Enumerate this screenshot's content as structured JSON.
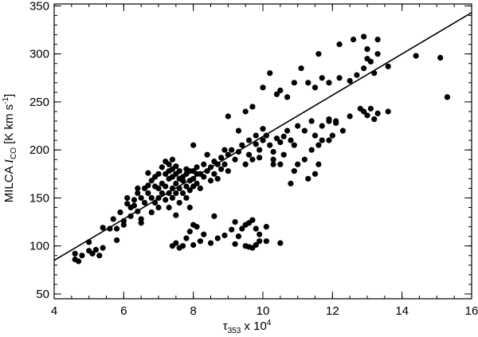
{
  "chart_data": {
    "type": "scatter",
    "xlabel": {
      "base": "τ",
      "sub": "353",
      "mid": " x 10",
      "sup": "4"
    },
    "ylabel": {
      "pre": "MILCA ",
      "italic": "I",
      "sub": "CO",
      "post": " [K km s",
      "sup": "-1",
      "end": "]"
    },
    "xlim": [
      4,
      16
    ],
    "ylim": [
      45,
      352
    ],
    "xticks": [
      4,
      6,
      8,
      10,
      12,
      14,
      16
    ],
    "yticks": [
      50,
      100,
      150,
      200,
      250,
      300,
      350
    ],
    "x_minor_step": 0.5,
    "y_minor_step": 10,
    "grid": false,
    "marker_color": "#000000",
    "fit_line": {
      "x": [
        4.0,
        16.0
      ],
      "y": [
        85,
        343
      ]
    },
    "points": [
      [
        4.6,
        92
      ],
      [
        4.6,
        86
      ],
      [
        4.7,
        84
      ],
      [
        4.8,
        90
      ],
      [
        5.0,
        104
      ],
      [
        5.0,
        95
      ],
      [
        5.1,
        92
      ],
      [
        5.2,
        96
      ],
      [
        5.3,
        90
      ],
      [
        5.4,
        98
      ],
      [
        5.4,
        119
      ],
      [
        5.6,
        118
      ],
      [
        5.7,
        128
      ],
      [
        5.8,
        106
      ],
      [
        5.8,
        118
      ],
      [
        5.9,
        135
      ],
      [
        6.0,
        126
      ],
      [
        6.0,
        122
      ],
      [
        6.1,
        144
      ],
      [
        6.1,
        150
      ],
      [
        6.2,
        131
      ],
      [
        6.2,
        140
      ],
      [
        6.3,
        148
      ],
      [
        6.3,
        142
      ],
      [
        6.4,
        155
      ],
      [
        6.4,
        136
      ],
      [
        6.4,
        160
      ],
      [
        6.5,
        150
      ],
      [
        6.5,
        128
      ],
      [
        6.5,
        124
      ],
      [
        6.6,
        160
      ],
      [
        6.6,
        145
      ],
      [
        6.7,
        176
      ],
      [
        6.7,
        163
      ],
      [
        6.7,
        155
      ],
      [
        6.8,
        168
      ],
      [
        6.8,
        150
      ],
      [
        6.8,
        135
      ],
      [
        6.9,
        172
      ],
      [
        6.9,
        162
      ],
      [
        6.9,
        145
      ],
      [
        7.0,
        160
      ],
      [
        7.0,
        175
      ],
      [
        7.0,
        150
      ],
      [
        7.0,
        140
      ],
      [
        7.1,
        182
      ],
      [
        7.1,
        165
      ],
      [
        7.1,
        155
      ],
      [
        7.2,
        188
      ],
      [
        7.2,
        175
      ],
      [
        7.2,
        162
      ],
      [
        7.2,
        148
      ],
      [
        7.3,
        185
      ],
      [
        7.3,
        178
      ],
      [
        7.3,
        170
      ],
      [
        7.3,
        155
      ],
      [
        7.3,
        140
      ],
      [
        7.4,
        190
      ],
      [
        7.4,
        180
      ],
      [
        7.4,
        172
      ],
      [
        7.4,
        160
      ],
      [
        7.4,
        150
      ],
      [
        7.5,
        183
      ],
      [
        7.5,
        175
      ],
      [
        7.5,
        165
      ],
      [
        7.5,
        155
      ],
      [
        7.5,
        132
      ],
      [
        7.6,
        178
      ],
      [
        7.6,
        170
      ],
      [
        7.6,
        160
      ],
      [
        7.6,
        145
      ],
      [
        7.7,
        172
      ],
      [
        7.7,
        168
      ],
      [
        7.7,
        155
      ],
      [
        7.8,
        180
      ],
      [
        7.8,
        175
      ],
      [
        7.8,
        162
      ],
      [
        7.8,
        150
      ],
      [
        7.9,
        178
      ],
      [
        7.9,
        168
      ],
      [
        7.9,
        158
      ],
      [
        7.9,
        140
      ],
      [
        8.0,
        205
      ],
      [
        8.0,
        178
      ],
      [
        8.0,
        170
      ],
      [
        8.0,
        162
      ],
      [
        8.1,
        182
      ],
      [
        8.1,
        175
      ],
      [
        8.1,
        165
      ],
      [
        8.2,
        175
      ],
      [
        8.2,
        160
      ],
      [
        8.3,
        185
      ],
      [
        8.3,
        172
      ],
      [
        8.4,
        178
      ],
      [
        8.4,
        195
      ],
      [
        8.5,
        182
      ],
      [
        8.5,
        168
      ],
      [
        8.6,
        188
      ],
      [
        8.6,
        175
      ],
      [
        8.7,
        185
      ],
      [
        8.7,
        170
      ],
      [
        8.8,
        192
      ],
      [
        8.8,
        180
      ],
      [
        8.9,
        200
      ],
      [
        8.9,
        185
      ],
      [
        9.0,
        195
      ],
      [
        9.0,
        178
      ],
      [
        9.1,
        200
      ],
      [
        9.2,
        190
      ],
      [
        9.3,
        220
      ],
      [
        9.3,
        198
      ],
      [
        9.4,
        205
      ],
      [
        9.5,
        185
      ],
      [
        9.6,
        195
      ],
      [
        9.6,
        210
      ],
      [
        9.7,
        190
      ],
      [
        9.8,
        206
      ],
      [
        9.8,
        215
      ],
      [
        9.9,
        200
      ],
      [
        9.9,
        192
      ],
      [
        10.0,
        222
      ],
      [
        10.0,
        210
      ],
      [
        10.1,
        215
      ],
      [
        10.2,
        205
      ],
      [
        10.3,
        198
      ],
      [
        10.3,
        190
      ],
      [
        10.4,
        212
      ],
      [
        10.5,
        208
      ],
      [
        10.6,
        214
      ],
      [
        10.7,
        220
      ],
      [
        10.8,
        210
      ],
      [
        10.9,
        205
      ],
      [
        11.0,
        225
      ],
      [
        11.2,
        220
      ],
      [
        11.4,
        230
      ],
      [
        11.5,
        215
      ],
      [
        11.7,
        225
      ],
      [
        11.9,
        232
      ],
      [
        12.0,
        215
      ],
      [
        12.1,
        228
      ],
      [
        10.9,
        178
      ],
      [
        10.8,
        165
      ],
      [
        11.0,
        185
      ],
      [
        11.2,
        190
      ],
      [
        11.4,
        200
      ],
      [
        11.6,
        205
      ],
      [
        11.7,
        210
      ],
      [
        11.9,
        210
      ],
      [
        12.1,
        230
      ],
      [
        12.3,
        220
      ],
      [
        10.5,
        185
      ],
      [
        10.6,
        195
      ],
      [
        11.3,
        170
      ],
      [
        11.5,
        175
      ],
      [
        11.6,
        185
      ],
      [
        10.3,
        185
      ],
      [
        11.9,
        230
      ],
      [
        12.5,
        235
      ],
      [
        12.9,
        240
      ],
      [
        13.1,
        243
      ],
      [
        13.3,
        238
      ],
      [
        13.6,
        240
      ],
      [
        12.8,
        243
      ],
      [
        13.0,
        236
      ],
      [
        13.2,
        232
      ],
      [
        9.0,
        235
      ],
      [
        9.5,
        240
      ],
      [
        9.7,
        245
      ],
      [
        10.0,
        265
      ],
      [
        10.4,
        258
      ],
      [
        10.5,
        262
      ],
      [
        10.7,
        255
      ],
      [
        10.9,
        270
      ],
      [
        11.1,
        285
      ],
      [
        11.3,
        270
      ],
      [
        11.5,
        265
      ],
      [
        11.7,
        275
      ],
      [
        11.9,
        270
      ],
      [
        12.2,
        275
      ],
      [
        12.5,
        272
      ],
      [
        12.7,
        278
      ],
      [
        12.9,
        285
      ],
      [
        13.2,
        280
      ],
      [
        13.6,
        287
      ],
      [
        13.0,
        295
      ],
      [
        13.1,
        292
      ],
      [
        13.3,
        300
      ],
      [
        13.0,
        305
      ],
      [
        12.6,
        315
      ],
      [
        12.9,
        318
      ],
      [
        13.3,
        315
      ],
      [
        12.2,
        310
      ],
      [
        11.6,
        300
      ],
      [
        10.2,
        280
      ],
      [
        14.4,
        298
      ],
      [
        15.1,
        296
      ],
      [
        15.3,
        255
      ],
      [
        7.5,
        103
      ],
      [
        7.7,
        100
      ],
      [
        7.8,
        108
      ],
      [
        7.9,
        115
      ],
      [
        8.0,
        122
      ],
      [
        8.0,
        101
      ],
      [
        8.2,
        105
      ],
      [
        8.3,
        112
      ],
      [
        8.5,
        103
      ],
      [
        8.7,
        108
      ],
      [
        8.9,
        111
      ],
      [
        9.1,
        117
      ],
      [
        7.6,
        98
      ],
      [
        7.4,
        100
      ],
      [
        8.1,
        120
      ],
      [
        8.6,
        131
      ],
      [
        9.3,
        110
      ],
      [
        9.4,
        118
      ],
      [
        9.5,
        122
      ],
      [
        9.6,
        124
      ],
      [
        9.7,
        127
      ],
      [
        9.8,
        118
      ],
      [
        9.9,
        112
      ],
      [
        10.1,
        105
      ],
      [
        9.2,
        102
      ],
      [
        9.6,
        99
      ],
      [
        9.7,
        98
      ],
      [
        9.8,
        101
      ],
      [
        9.9,
        105
      ],
      [
        10.1,
        120
      ],
      [
        9.5,
        100
      ],
      [
        10.5,
        103
      ],
      [
        9.2,
        125
      ]
    ]
  }
}
